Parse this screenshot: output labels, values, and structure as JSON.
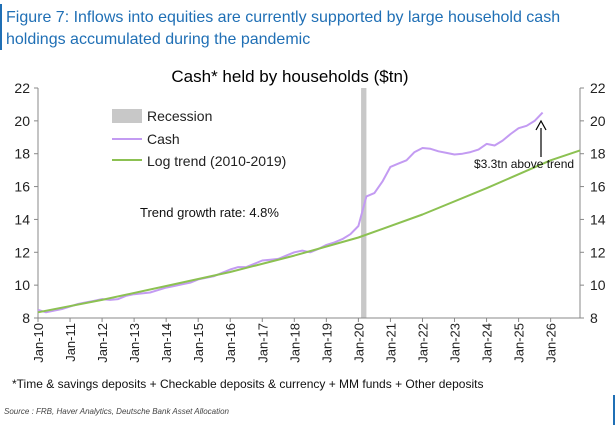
{
  "figure": {
    "title": "Figure 7: Inflows into equities are currently supported by large household cash holdings accumulated during the pandemic",
    "footnote": "*Time & savings deposits + Checkable deposits & currency + MM funds + Other deposits",
    "source": "Source : FRB, Haver Analytics, Deutsche Bank Asset Allocation"
  },
  "colors": {
    "title": "#1f6fb5",
    "cash": "#c39bf2",
    "trend": "#8cc152",
    "recession": "#c8c8c8",
    "axis": "#888888"
  },
  "chart_data": {
    "type": "line",
    "title": "Cash* held by households ($tn)",
    "xlabel": "",
    "ylabel": "",
    "ylim": [
      8,
      22
    ],
    "yticks": [
      8,
      10,
      12,
      14,
      16,
      18,
      20,
      22
    ],
    "xlim": [
      "2010-01",
      "2026-12"
    ],
    "xticks": [
      "Jan-10",
      "Jan-11",
      "Jan-12",
      "Jan-13",
      "Jan-14",
      "Jan-15",
      "Jan-16",
      "Jan-17",
      "Jan-18",
      "Jan-19",
      "Jan-20",
      "Jan-21",
      "Jan-22",
      "Jan-23",
      "Jan-24",
      "Jan-25",
      "Jan-26"
    ],
    "legend": [
      {
        "label": "Recession",
        "kind": "band"
      },
      {
        "label": "Cash",
        "kind": "line"
      },
      {
        "label": "Log trend (2010-2019)",
        "kind": "line"
      }
    ],
    "recession": {
      "start": "2020-02",
      "end": "2020-04"
    },
    "series": [
      {
        "name": "Cash",
        "x": [
          "2010-01",
          "2010-04",
          "2010-07",
          "2010-10",
          "2011-01",
          "2011-04",
          "2011-07",
          "2011-10",
          "2012-01",
          "2012-04",
          "2012-07",
          "2012-10",
          "2013-01",
          "2013-04",
          "2013-07",
          "2013-10",
          "2014-01",
          "2014-04",
          "2014-07",
          "2014-10",
          "2015-01",
          "2015-04",
          "2015-07",
          "2015-10",
          "2016-01",
          "2016-04",
          "2016-07",
          "2016-10",
          "2017-01",
          "2017-04",
          "2017-07",
          "2017-10",
          "2018-01",
          "2018-04",
          "2018-07",
          "2018-10",
          "2019-01",
          "2019-04",
          "2019-07",
          "2019-10",
          "2020-01",
          "2020-04",
          "2020-07",
          "2020-10",
          "2021-01",
          "2021-04",
          "2021-07",
          "2021-10",
          "2022-01",
          "2022-04",
          "2022-07",
          "2022-10",
          "2023-01",
          "2023-04",
          "2023-07",
          "2023-10",
          "2024-01",
          "2024-04",
          "2024-07",
          "2024-10",
          "2025-01",
          "2025-04",
          "2025-07",
          "2025-10"
        ],
        "values": [
          8.5,
          8.35,
          8.45,
          8.55,
          8.7,
          8.85,
          8.95,
          9.05,
          9.15,
          9.1,
          9.15,
          9.35,
          9.45,
          9.5,
          9.55,
          9.7,
          9.85,
          9.95,
          10.05,
          10.15,
          10.35,
          10.45,
          10.55,
          10.75,
          10.95,
          11.1,
          11.1,
          11.3,
          11.5,
          11.55,
          11.6,
          11.8,
          12.0,
          12.1,
          12.0,
          12.2,
          12.45,
          12.6,
          12.8,
          13.1,
          13.6,
          15.4,
          15.6,
          16.3,
          17.2,
          17.4,
          17.6,
          18.1,
          18.35,
          18.3,
          18.15,
          18.05,
          17.95,
          18.0,
          18.1,
          18.25,
          18.6,
          18.5,
          18.8,
          19.2,
          19.55,
          19.7,
          20.0,
          20.5
        ]
      },
      {
        "name": "Log trend (2010-2019)",
        "x": [
          "2010-01",
          "2012-01",
          "2014-01",
          "2016-01",
          "2018-01",
          "2020-01",
          "2022-01",
          "2024-01",
          "2026-01",
          "2026-12"
        ],
        "values": [
          8.35,
          9.1,
          9.95,
          10.8,
          11.8,
          12.9,
          14.3,
          15.9,
          17.6,
          18.2
        ]
      }
    ],
    "annotations": [
      {
        "text": "Trend growth rate: 4.8%"
      },
      {
        "text": "$3.3tn above trend"
      }
    ]
  }
}
